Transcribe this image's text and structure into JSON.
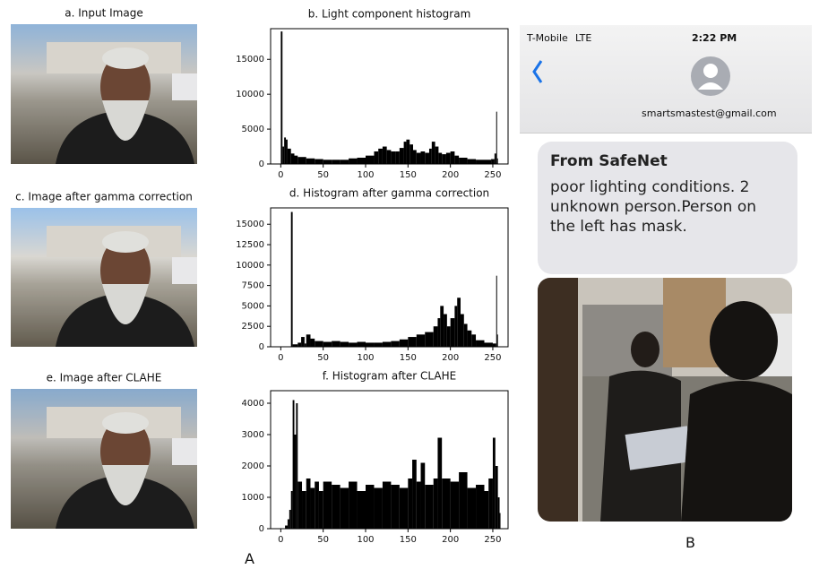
{
  "chart_data": [
    {
      "type": "histogram",
      "title": "b. Light component histogram",
      "color": "#000000",
      "x": [
        0,
        2,
        4,
        6,
        8,
        12,
        16,
        20,
        30,
        40,
        50,
        60,
        70,
        80,
        90,
        100,
        110,
        115,
        120,
        125,
        130,
        135,
        140,
        145,
        148,
        152,
        156,
        160,
        165,
        170,
        175,
        178,
        182,
        186,
        190,
        195,
        200,
        205,
        210,
        220,
        230,
        240,
        248,
        252,
        254,
        255
      ],
      "values": [
        19000,
        2500,
        3800,
        3500,
        2200,
        1500,
        1200,
        1000,
        800,
        700,
        600,
        600,
        600,
        800,
        900,
        1200,
        1800,
        2200,
        2500,
        2000,
        1800,
        1800,
        2300,
        3200,
        3500,
        2800,
        2000,
        1600,
        1800,
        1600,
        2200,
        3200,
        2500,
        1600,
        1400,
        1600,
        1800,
        1200,
        900,
        700,
        600,
        600,
        700,
        1500,
        7500,
        800
      ],
      "xlim": [
        -12,
        268
      ],
      "ylim": [
        0,
        19400
      ],
      "xticks": [
        0,
        50,
        100,
        150,
        200,
        250
      ],
      "yticks": [
        0,
        5000,
        10000,
        15000
      ]
    },
    {
      "type": "histogram",
      "title": "d. Histogram after gamma correction",
      "color": "#000000",
      "x": [
        12,
        14,
        20,
        24,
        28,
        30,
        35,
        40,
        50,
        60,
        70,
        80,
        90,
        100,
        110,
        120,
        130,
        140,
        150,
        160,
        170,
        180,
        185,
        188,
        192,
        196,
        200,
        205,
        208,
        212,
        216,
        220,
        225,
        230,
        240,
        250,
        254,
        255
      ],
      "values": [
        16500,
        300,
        500,
        1200,
        400,
        1500,
        1000,
        700,
        600,
        700,
        600,
        500,
        600,
        500,
        500,
        600,
        700,
        900,
        1200,
        1500,
        1800,
        2500,
        3500,
        5000,
        4000,
        2500,
        3500,
        5000,
        6000,
        4000,
        2800,
        2000,
        1500,
        800,
        500,
        400,
        8700,
        1500
      ],
      "xlim": [
        -12,
        268
      ],
      "ylim": [
        0,
        17000
      ],
      "xticks": [
        0,
        50,
        100,
        150,
        200,
        250
      ],
      "yticks": [
        0,
        2500,
        5000,
        7500,
        10000,
        12500,
        15000
      ]
    },
    {
      "type": "histogram",
      "title": "f. Histogram after CLAHE",
      "color": "#000000",
      "x": [
        5,
        8,
        10,
        12,
        14,
        16,
        18,
        20,
        25,
        30,
        35,
        40,
        45,
        50,
        60,
        70,
        80,
        90,
        100,
        110,
        120,
        130,
        140,
        150,
        155,
        160,
        165,
        170,
        180,
        185,
        190,
        200,
        210,
        220,
        230,
        240,
        245,
        250,
        253,
        256,
        258
      ],
      "values": [
        100,
        300,
        600,
        1200,
        4100,
        3000,
        4000,
        1500,
        1200,
        1600,
        1300,
        1500,
        1200,
        1500,
        1400,
        1300,
        1500,
        1200,
        1400,
        1300,
        1500,
        1400,
        1300,
        1600,
        2200,
        1500,
        2100,
        1400,
        1600,
        2900,
        1600,
        1500,
        1800,
        1300,
        1400,
        1200,
        1600,
        2900,
        2000,
        1000,
        500
      ],
      "xlim": [
        -12,
        268
      ],
      "ylim": [
        0,
        4400
      ],
      "xticks": [
        0,
        50,
        100,
        150,
        200,
        250
      ],
      "yticks": [
        0,
        1000,
        2000,
        3000,
        4000
      ]
    }
  ],
  "panels": [
    "a. Input Image",
    "c. Image after gamma correction",
    "e. Image after CLAHE"
  ],
  "phone": {
    "carrier": "T-Mobile",
    "network": "LTE",
    "time": "2:22 PM",
    "contact": "smartsmastest@gmail.com",
    "sender": "From SafeNet",
    "message": "poor lighting conditions. 2 unknown person.Person on the left has mask."
  },
  "labels": [
    "A",
    "B"
  ]
}
